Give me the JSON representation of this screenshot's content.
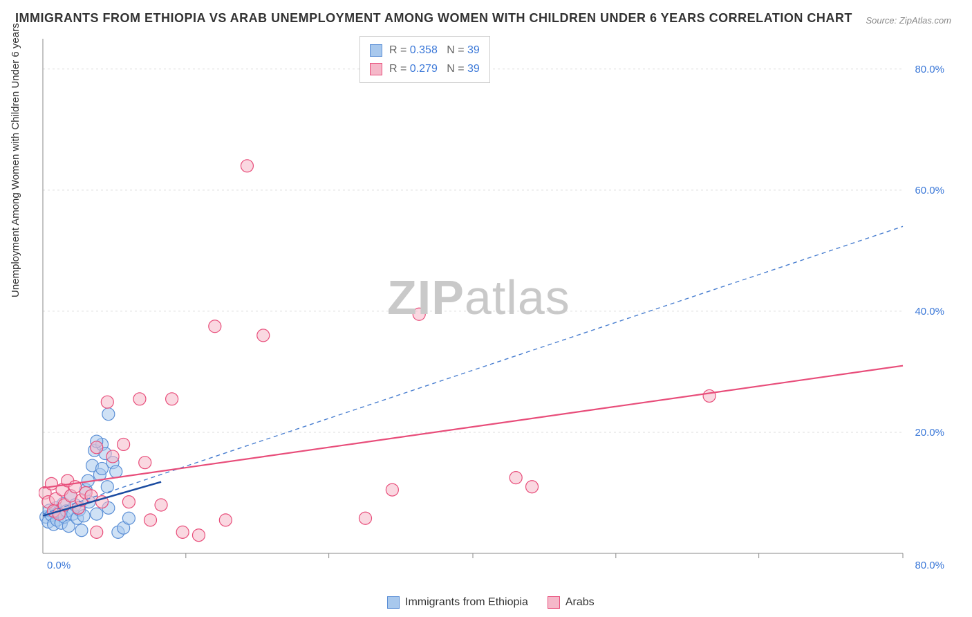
{
  "title": "IMMIGRANTS FROM ETHIOPIA VS ARAB UNEMPLOYMENT AMONG WOMEN WITH CHILDREN UNDER 6 YEARS CORRELATION CHART",
  "source": "Source: ZipAtlas.com",
  "ylabel": "Unemployment Among Women with Children Under 6 years",
  "watermark_bold": "ZIP",
  "watermark_rest": "atlas",
  "chart": {
    "type": "scatter",
    "xlim": [
      0,
      80
    ],
    "ylim": [
      0,
      85
    ],
    "x_ticks": [
      0,
      80
    ],
    "x_tick_labels": [
      "0.0%",
      "80.0%"
    ],
    "y_ticks": [
      20,
      40,
      60,
      80
    ],
    "y_tick_labels": [
      "20.0%",
      "40.0%",
      "60.0%",
      "80.0%"
    ],
    "x_grid_positions": [
      13.3,
      26.6,
      40,
      53.3,
      66.6,
      80
    ],
    "y_grid_positions": [
      20,
      40,
      60,
      80
    ],
    "background_color": "#ffffff",
    "grid_color": "#dddddd",
    "axis_color": "#888888",
    "marker_radius": 9,
    "marker_stroke_width": 1.2,
    "series": [
      {
        "name": "Immigrants from Ethiopia",
        "fill": "#a8c8ed",
        "fill_opacity": 0.55,
        "stroke": "#5b8fd6",
        "r_value": "0.358",
        "n_value": "39",
        "trend": {
          "x1": 0,
          "y1": 6.5,
          "x2": 80,
          "y2": 54,
          "stroke": "#4a7fd0",
          "width": 1.4,
          "dash": "6,5"
        },
        "trend_solid": {
          "x1": 0,
          "y1": 6.2,
          "x2": 11,
          "y2": 11.8,
          "stroke": "#1a4ba0",
          "width": 2.5
        },
        "points": [
          [
            0.3,
            6.0
          ],
          [
            0.5,
            5.2
          ],
          [
            0.6,
            7.1
          ],
          [
            0.8,
            6.3
          ],
          [
            1.0,
            4.8
          ],
          [
            1.2,
            7.5
          ],
          [
            1.3,
            5.5
          ],
          [
            1.5,
            6.8
          ],
          [
            1.7,
            5.0
          ],
          [
            1.9,
            8.2
          ],
          [
            2.0,
            6.0
          ],
          [
            2.2,
            7.0
          ],
          [
            2.4,
            4.5
          ],
          [
            2.6,
            9.5
          ],
          [
            2.8,
            6.5
          ],
          [
            3.0,
            8.0
          ],
          [
            3.2,
            5.8
          ],
          [
            3.4,
            7.2
          ],
          [
            3.6,
            3.8
          ],
          [
            3.8,
            6.2
          ],
          [
            4.0,
            10.5
          ],
          [
            4.3,
            8.5
          ],
          [
            4.6,
            14.5
          ],
          [
            4.8,
            17.0
          ],
          [
            5.0,
            6.5
          ],
          [
            5.3,
            13.0
          ],
          [
            5.5,
            18.0
          ],
          [
            5.8,
            16.5
          ],
          [
            6.1,
            7.5
          ],
          [
            6.1,
            23.0
          ],
          [
            6.5,
            15.0
          ],
          [
            7.0,
            3.5
          ],
          [
            7.5,
            4.2
          ],
          [
            8.0,
            5.8
          ],
          [
            4.2,
            12.0
          ],
          [
            5.0,
            18.5
          ],
          [
            5.5,
            14.0
          ],
          [
            6.0,
            11.0
          ],
          [
            6.8,
            13.5
          ]
        ]
      },
      {
        "name": "Arabs",
        "fill": "#f5b8c9",
        "fill_opacity": 0.55,
        "stroke": "#e84d7a",
        "r_value": "0.279",
        "n_value": "39",
        "trend": {
          "x1": 0,
          "y1": 10.8,
          "x2": 80,
          "y2": 31,
          "stroke": "#e84d7a",
          "width": 2.2,
          "dash": ""
        },
        "points": [
          [
            0.2,
            10.0
          ],
          [
            0.5,
            8.5
          ],
          [
            0.8,
            11.5
          ],
          [
            1.0,
            7.0
          ],
          [
            1.2,
            9.0
          ],
          [
            1.5,
            6.5
          ],
          [
            1.8,
            10.5
          ],
          [
            2.0,
            8.0
          ],
          [
            2.3,
            12.0
          ],
          [
            2.6,
            9.5
          ],
          [
            3.0,
            11.0
          ],
          [
            3.3,
            7.5
          ],
          [
            3.6,
            8.8
          ],
          [
            4.0,
            10.0
          ],
          [
            4.5,
            9.5
          ],
          [
            5.0,
            17.5
          ],
          [
            5.5,
            8.5
          ],
          [
            6.0,
            25.0
          ],
          [
            6.5,
            16.0
          ],
          [
            7.5,
            18.0
          ],
          [
            8.0,
            8.5
          ],
          [
            9.0,
            25.5
          ],
          [
            9.5,
            15.0
          ],
          [
            10.0,
            5.5
          ],
          [
            11.0,
            8.0
          ],
          [
            12.0,
            25.5
          ],
          [
            13.0,
            3.5
          ],
          [
            14.5,
            3.0
          ],
          [
            16.0,
            37.5
          ],
          [
            17.0,
            5.5
          ],
          [
            19.0,
            64.0
          ],
          [
            20.5,
            36.0
          ],
          [
            30.0,
            5.8
          ],
          [
            32.5,
            10.5
          ],
          [
            35.0,
            39.5
          ],
          [
            44.0,
            12.5
          ],
          [
            45.5,
            11.0
          ],
          [
            62.0,
            26.0
          ],
          [
            5.0,
            3.5
          ]
        ]
      }
    ]
  },
  "legend_top_labels": {
    "R": "R =",
    "N": "N ="
  },
  "legend_bottom": [
    {
      "label": "Immigrants from Ethiopia",
      "fill": "#a8c8ed",
      "stroke": "#5b8fd6"
    },
    {
      "label": "Arabs",
      "fill": "#f5b8c9",
      "stroke": "#e84d7a"
    }
  ]
}
